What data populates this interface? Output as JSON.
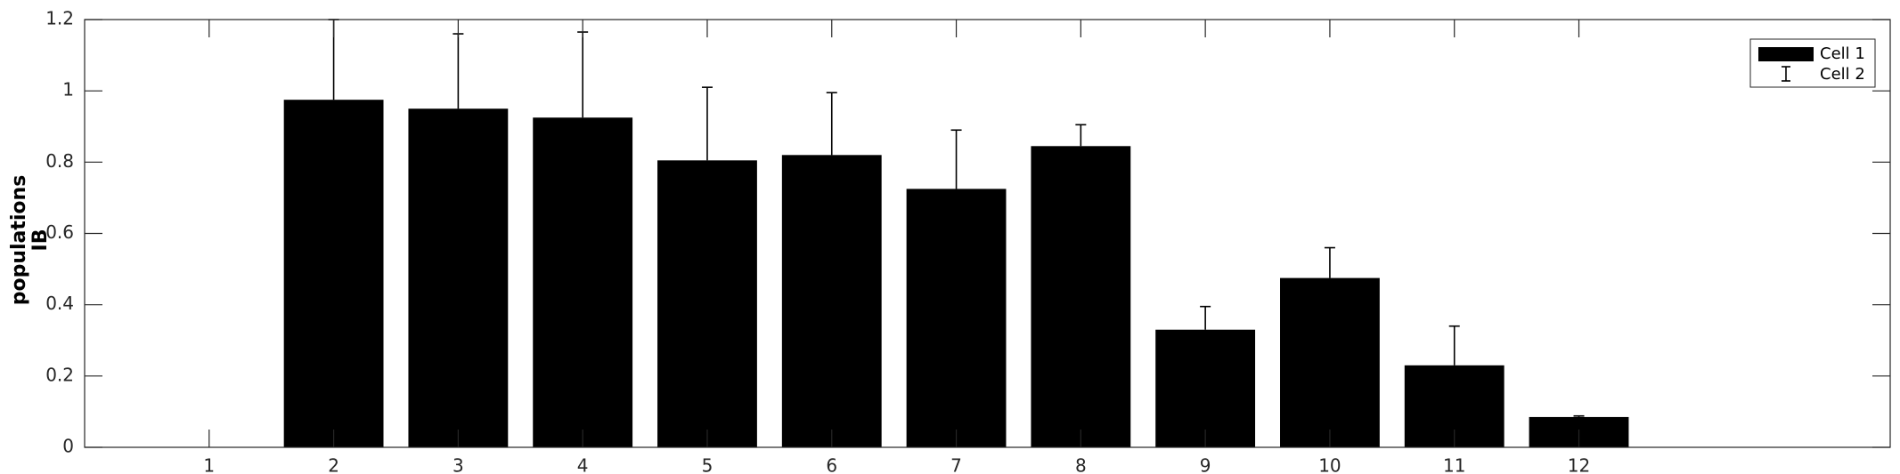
{
  "chart_data": {
    "type": "bar",
    "categories": [
      "1",
      "2",
      "3",
      "4",
      "5",
      "6",
      "7",
      "8",
      "9",
      "10",
      "11",
      "12"
    ],
    "series": [
      {
        "name": "Cell 1",
        "values": [
          0,
          0.975,
          0.95,
          0.925,
          0.805,
          0.82,
          0.725,
          0.845,
          0.33,
          0.475,
          0.23,
          0.085
        ]
      },
      {
        "name": "Cell 2",
        "type": "errorbar",
        "upper": [
          0,
          1.2,
          1.16,
          1.165,
          1.01,
          0.995,
          0.89,
          0.905,
          0.395,
          0.56,
          0.34,
          0.088
        ]
      }
    ],
    "xlim": [
      0,
      14.5
    ],
    "ylim": [
      0,
      1.2
    ],
    "yticks": [
      0,
      0.2,
      0.4,
      0.6,
      0.8,
      1,
      1.2
    ],
    "ytick_labels": [
      "0",
      "0.2",
      "0.4",
      "0.6",
      "0.8",
      "1",
      "1.2"
    ],
    "ylabel_lines": [
      "populations",
      "IB"
    ],
    "xlabel": "",
    "grid": false,
    "legend_position": "top-right",
    "colors": {
      "bar": "#000000",
      "axis": "#262626",
      "background": "#ffffff"
    }
  }
}
